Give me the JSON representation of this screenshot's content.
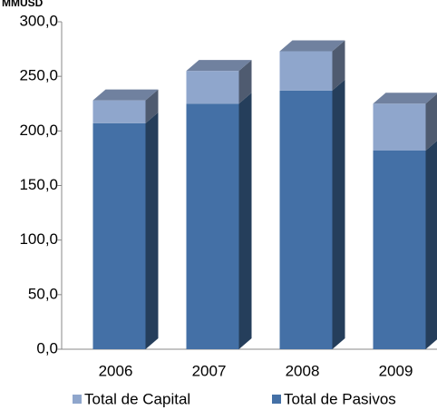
{
  "chart_data": {
    "type": "bar3d_stacked",
    "y_label": "MMUSD",
    "categories": [
      "2006",
      "2007",
      "2008",
      "2009"
    ],
    "series": [
      {
        "name": "Total de Pasivos",
        "color": "#4470a6",
        "values": [
          207,
          225,
          237,
          182
        ]
      },
      {
        "name": "Total de Capital",
        "color": "#8fa6cc",
        "values": [
          21,
          30,
          36,
          43
        ]
      }
    ],
    "ylim": [
      0,
      300
    ],
    "yticks": [
      {
        "value": 0,
        "label": "0,0"
      },
      {
        "value": 50,
        "label": "50,0"
      },
      {
        "value": 100,
        "label": "100,0"
      },
      {
        "value": 150,
        "label": "150,0"
      },
      {
        "value": 200,
        "label": "200,0"
      },
      {
        "value": 250,
        "label": "250,0"
      },
      {
        "value": 300,
        "label": "300,0"
      }
    ],
    "grid": false,
    "legend": "bottom"
  }
}
